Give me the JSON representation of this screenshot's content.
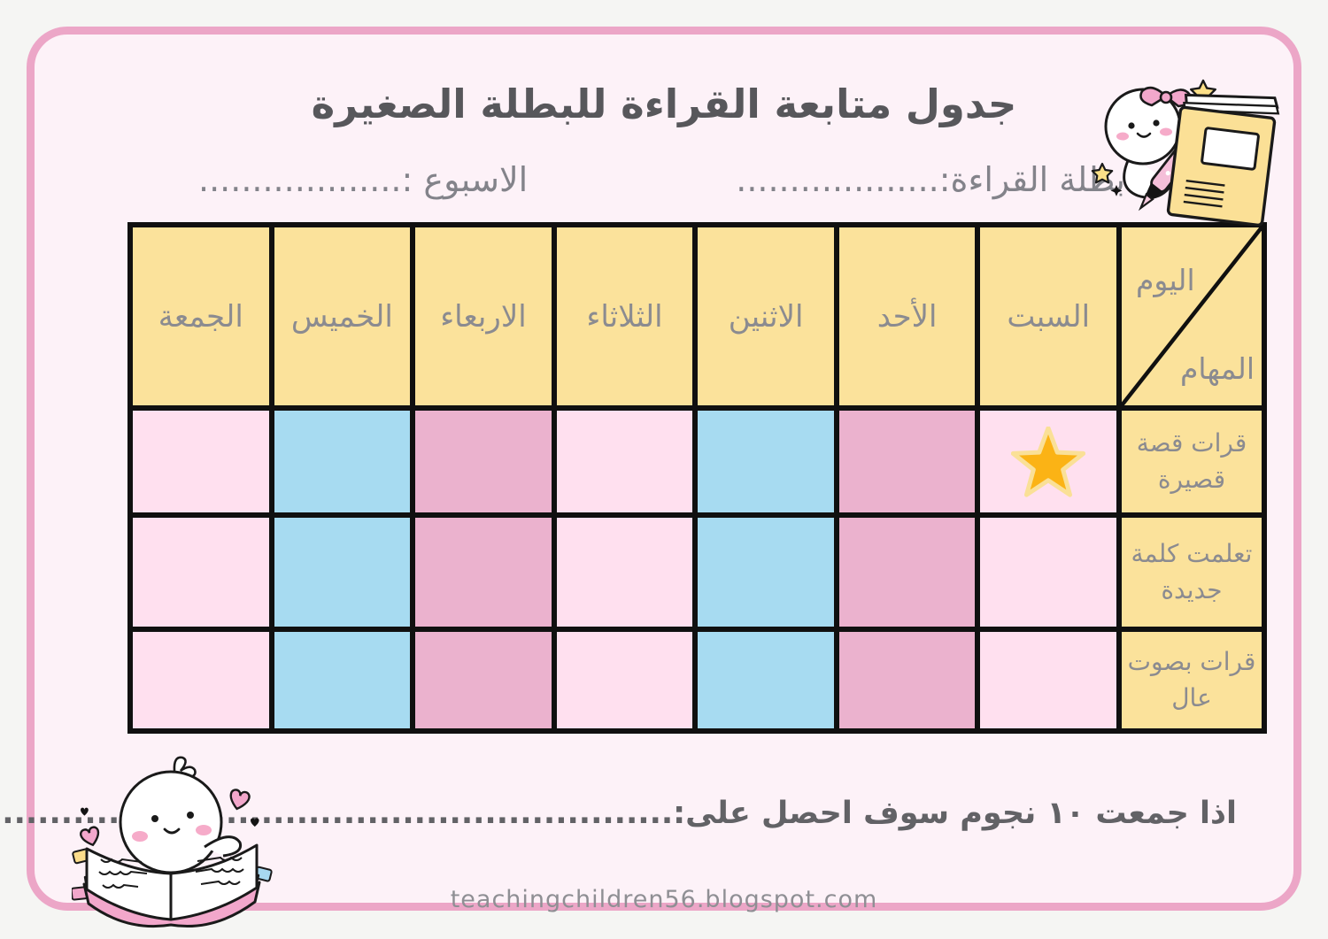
{
  "header": {
    "title": "جدول متابعة القراءة للبطلة الصغيرة"
  },
  "fields": {
    "reader_label": "بطلة القراءة:",
    "reader_dots": "...................",
    "week_label": "الاسبوع :",
    "week_dots": "..................."
  },
  "table": {
    "corner": {
      "day": "اليوم",
      "tasks": "المهام"
    },
    "days": [
      "الجمعة",
      "الخميس",
      "الاربعاء",
      "الثلاثاء",
      "الاثنين",
      "الأحد",
      "السبت"
    ],
    "tasks": [
      "قرات قصة قصيرة",
      "تعلمت كلمة جديدة",
      "قرات بصوت عال"
    ],
    "column_colors": [
      "pink",
      "blue",
      "mauve",
      "pink",
      "blue",
      "mauve",
      "pink"
    ],
    "star_cells": [
      [
        0,
        6
      ]
    ]
  },
  "reward": {
    "label": "اذا جمعت ١٠ نجوم سوف احصل على:",
    "dots": "................................................................"
  },
  "footer": {
    "url": "teachingchildren56.blogspot.com"
  },
  "colors": {
    "page_bg": "#F5F5F3",
    "card_bg": "#FDF2F8",
    "card_border": "#ECA6C7",
    "cell_yellow": "#FBE29B",
    "cell_pink": "#FFE0EF",
    "cell_blue": "#A7DBF1",
    "cell_mauve": "#EBB2CE",
    "table_border": "#101010",
    "star_gold": "#FBB315",
    "star_rim": "#FAE097",
    "title_text": "#57575B",
    "label_text": "#8B8B90"
  },
  "illustrations": {
    "top_right": "girl-with-pencil-and-book",
    "bottom_left": "character-reading-open-book"
  }
}
